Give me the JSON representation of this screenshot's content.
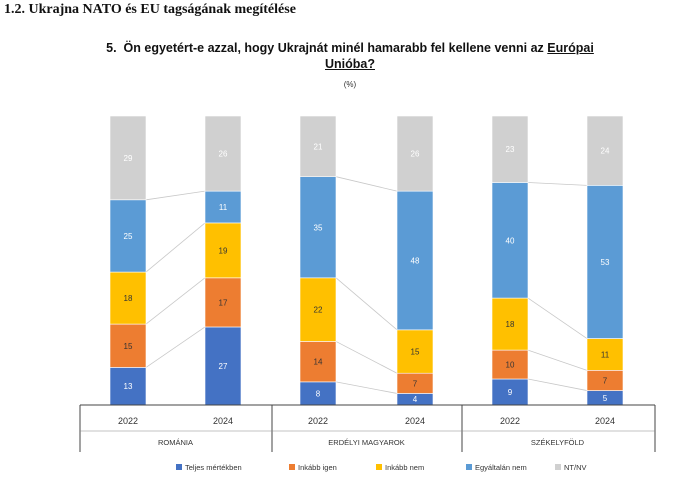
{
  "section_heading": "1.2. Ukrajna NATO és EU tagságának megítélése",
  "question": {
    "number": "5.",
    "text_before": "Ön egyetért-e azzal, hogy Ukrajnát minél hamarabb fel kellene venni az",
    "text_underlined_1": "Európai",
    "text_underlined_2": "Unióba?"
  },
  "unit": "(%)",
  "chart_data": {
    "type": "bar",
    "stacked": true,
    "ylim": [
      0,
      100
    ],
    "grid": false,
    "legend_position": "bottom",
    "groups": [
      {
        "label": "ROMÁNIA",
        "categories": [
          "2022",
          "2024"
        ]
      },
      {
        "label": "ERDÉLYI MAGYAROK",
        "categories": [
          "2022",
          "2024"
        ]
      },
      {
        "label": "SZÉKELYFÖLD",
        "categories": [
          "2022",
          "2024"
        ]
      }
    ],
    "series": [
      {
        "name": "Teljes mértékben",
        "color": "#4472c4",
        "values": [
          13,
          27,
          8,
          4,
          9,
          5
        ]
      },
      {
        "name": "Inkább igen",
        "color": "#ed7d31",
        "values": [
          15,
          17,
          14,
          7,
          10,
          7
        ]
      },
      {
        "name": "Inkább nem",
        "color": "#ffc000",
        "values": [
          18,
          19,
          22,
          15,
          18,
          11
        ]
      },
      {
        "name": "Egyáltalán nem",
        "color": "#5b9bd5",
        "values": [
          25,
          11,
          35,
          48,
          40,
          53
        ]
      },
      {
        "name": "NT/NV",
        "color": "#d0d0d0",
        "values": [
          29,
          26,
          21,
          26,
          23,
          24
        ]
      }
    ]
  }
}
